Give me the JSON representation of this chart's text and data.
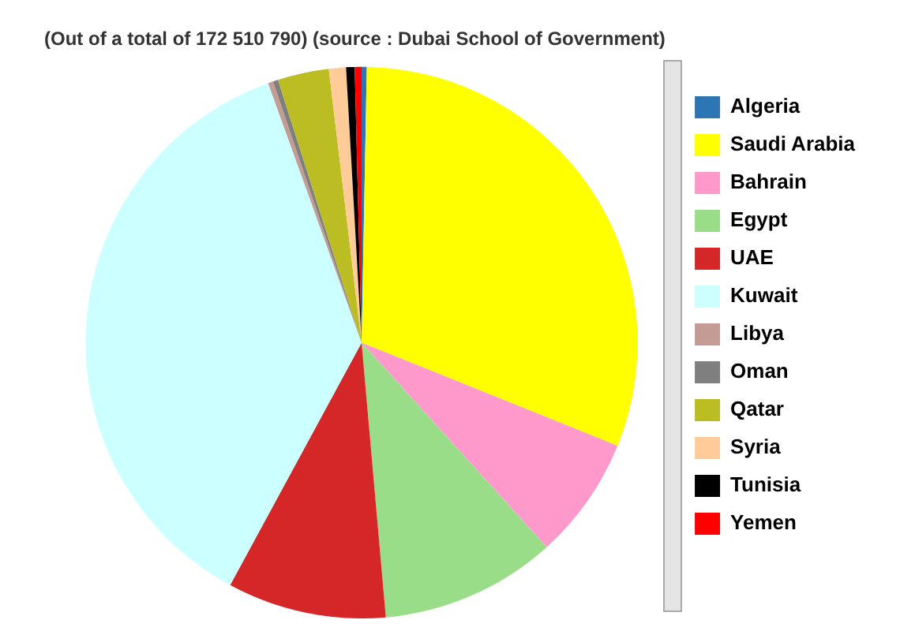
{
  "chart_data": {
    "type": "pie",
    "title": "(Out of a total of 172 510 790) (source : Dubai School of Government)",
    "categories": [
      "Algeria",
      "Saudi Arabia",
      "Bahrain",
      "Egypt",
      "UAE",
      "Kuwait",
      "Libya",
      "Oman",
      "Qatar",
      "Syria",
      "Tunisia",
      "Yemen"
    ],
    "values": [
      0.3,
      30.8,
      7.2,
      10.3,
      9.3,
      36.6,
      0.3,
      0.3,
      3.0,
      1.0,
      0.5,
      0.4
    ],
    "colors": [
      "#2e75b6",
      "#ffff00",
      "#ff99cc",
      "#99dd88",
      "#d62728",
      "#ccffff",
      "#c49c94",
      "#7f7f7f",
      "#bcbd22",
      "#ffcc99",
      "#000000",
      "#ff0000"
    ],
    "legend": "right"
  }
}
